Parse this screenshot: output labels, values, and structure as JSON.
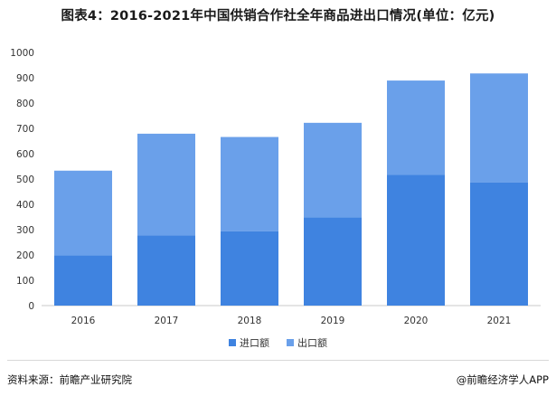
{
  "chart_data": {
    "type": "bar",
    "stacked": true,
    "title": "图表4：2016-2021年中国供销合作社全年商品进出口情况(单位：亿元)",
    "categories": [
      "2016",
      "2017",
      "2018",
      "2019",
      "2020",
      "2021"
    ],
    "series": [
      {
        "name": "进口额",
        "color": "#3f83e0",
        "values": [
          198,
          277,
          294,
          348,
          516,
          487
        ]
      },
      {
        "name": "出口额",
        "color": "#6aa0ea",
        "values": [
          335,
          402,
          372,
          374,
          373,
          430
        ]
      }
    ],
    "ylim": [
      0,
      1000
    ],
    "yticks": [
      "0",
      "100",
      "200",
      "300",
      "400",
      "500",
      "600",
      "700",
      "800",
      "900",
      "1000"
    ],
    "grid": false,
    "legend_position": "bottom-center"
  },
  "footer": {
    "source": "资料来源：前瞻产业研究院",
    "brand": "@前瞻经济学人APP"
  }
}
